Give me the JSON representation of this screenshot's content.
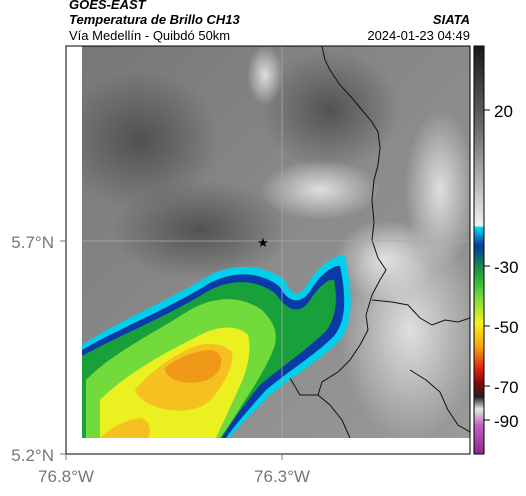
{
  "header": {
    "satellite": "GOES-EAST",
    "product": "Temperatura de Brillo CH13",
    "region": "Vía Medellín - Quibdó 50km",
    "organization": "SIATA",
    "timestamp": "2024-01-23 04:49"
  },
  "axes": {
    "lat_labels": [
      "5.7°N",
      "5.2°N"
    ],
    "lon_labels": [
      "76.8°W",
      "76.3°W"
    ]
  },
  "colorbar": {
    "labels": [
      "20",
      "-30",
      "-50",
      "-70",
      "-90"
    ]
  },
  "marker": {
    "name": "star-marker"
  }
}
